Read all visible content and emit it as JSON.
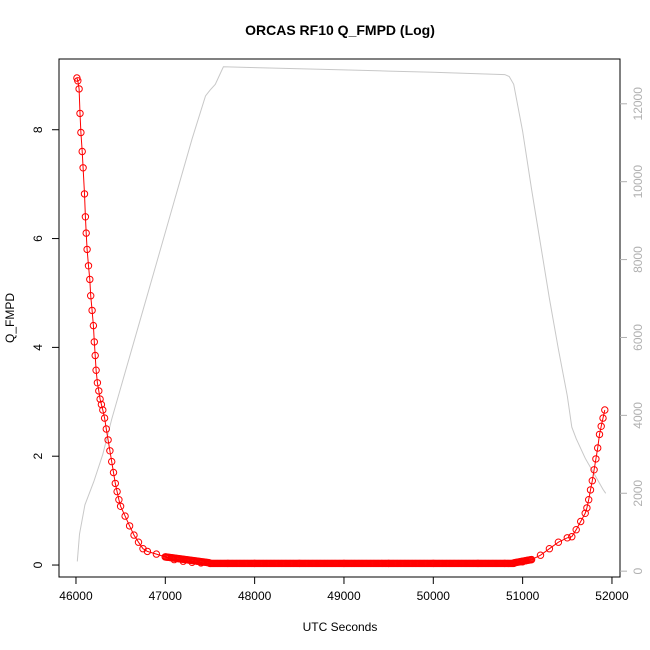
{
  "chart_data": {
    "type": "scatter",
    "title": "ORCAS RF10 Q_FMPD (Log)",
    "xlabel": "UTC Seconds",
    "ylabel": "Q_FMPD",
    "xlim": [
      45810,
      52090
    ],
    "ylim": [
      -0.22,
      9.3
    ],
    "y2lim": [
      -150,
      13150
    ],
    "x_ticks": [
      46000,
      47000,
      48000,
      49000,
      50000,
      51000,
      52000
    ],
    "y_ticks": [
      0,
      2,
      4,
      6,
      8
    ],
    "y2_ticks": [
      0,
      2000,
      4000,
      6000,
      8000,
      10000,
      12000
    ],
    "x_tick_labels": [
      "46000",
      "47000",
      "48000",
      "49000",
      "50000",
      "51000",
      "52000"
    ],
    "y_tick_labels": [
      "0",
      "2",
      "4",
      "6",
      "8"
    ],
    "y2_tick_labels": [
      "0",
      "2000",
      "4000",
      "6000",
      "8000",
      "10000",
      "12000"
    ],
    "series": [
      {
        "marker": "open-circle",
        "color": "#ff0000",
        "x": [
          46010,
          46020,
          46035,
          46045,
          46055,
          46070,
          46080,
          46095,
          46105,
          46115,
          46125,
          46140,
          46155,
          46165,
          46180,
          46195,
          46205,
          46215,
          46225,
          46240,
          46255,
          46270,
          46285,
          46300,
          46320,
          46340,
          46360,
          46380,
          46400,
          46420,
          46440,
          46460,
          46480,
          46500,
          46550,
          46600,
          46650,
          46700,
          46750,
          46800,
          46900,
          47000,
          47100,
          47200,
          47300,
          47400,
          47500,
          47700,
          48000,
          48500,
          49000,
          49500,
          50000,
          50500,
          50800,
          50900,
          51000,
          51100,
          51200,
          51300,
          51400,
          51500,
          51550,
          51600,
          51650,
          51700,
          51720,
          51740,
          51760,
          51780,
          51800,
          51820,
          51840,
          51860,
          51880,
          51900,
          51920
        ],
        "y": [
          8.95,
          8.9,
          8.75,
          8.3,
          7.95,
          7.6,
          7.3,
          6.82,
          6.4,
          6.1,
          5.8,
          5.5,
          5.25,
          4.95,
          4.68,
          4.4,
          4.1,
          3.85,
          3.58,
          3.35,
          3.2,
          3.05,
          2.95,
          2.85,
          2.7,
          2.5,
          2.3,
          2.1,
          1.9,
          1.7,
          1.5,
          1.35,
          1.2,
          1.08,
          0.9,
          0.72,
          0.55,
          0.42,
          0.3,
          0.25,
          0.2,
          0.15,
          0.1,
          0.07,
          0.05,
          0.04,
          0.03,
          0.03,
          0.03,
          0.03,
          0.03,
          0.03,
          0.03,
          0.03,
          0.03,
          0.04,
          0.06,
          0.1,
          0.18,
          0.3,
          0.42,
          0.5,
          0.52,
          0.65,
          0.8,
          0.95,
          1.05,
          1.2,
          1.38,
          1.55,
          1.75,
          1.95,
          2.15,
          2.4,
          2.55,
          2.7,
          2.85
        ]
      },
      {
        "axis": "right",
        "color": "#c8c8c8",
        "x": [
          46015,
          46040,
          46100,
          46200,
          46300,
          46400,
          46500,
          46700,
          46900,
          47100,
          47300,
          47450,
          47500,
          47560,
          47600,
          47650,
          48000,
          48500,
          49000,
          49500,
          50000,
          50500,
          50800,
          50850,
          50900,
          51000,
          51100,
          51200,
          51300,
          51400,
          51500,
          51550,
          51600,
          51700,
          51800,
          51900,
          51930
        ],
        "y": [
          250,
          950,
          1700,
          2300,
          3000,
          3900,
          4700,
          6300,
          7900,
          9500,
          11100,
          12200,
          12350,
          12500,
          12700,
          12950,
          12930,
          12900,
          12870,
          12840,
          12810,
          12770,
          12750,
          12700,
          12500,
          11300,
          9800,
          8400,
          7000,
          5700,
          4500,
          3700,
          3400,
          2900,
          2500,
          2100,
          2000
        ]
      }
    ]
  }
}
